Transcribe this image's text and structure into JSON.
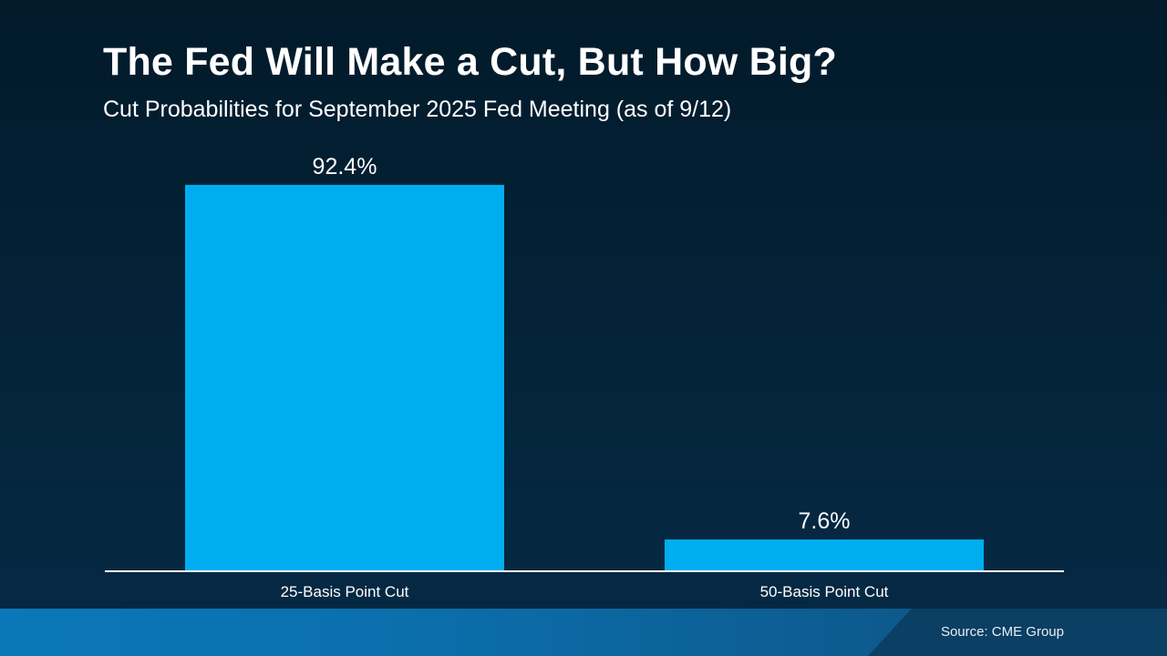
{
  "chart_data": {
    "type": "bar",
    "title": "The Fed Will Make a Cut, But How Big?",
    "subtitle": "Cut Probabilities for September 2025 Fed Meeting (as of 9/12)",
    "categories": [
      "25-Basis Point Cut",
      "50-Basis Point Cut"
    ],
    "values": [
      92.4,
      7.6
    ],
    "value_labels": [
      "92.4%",
      "7.6%"
    ],
    "xlabel": "",
    "ylabel": "",
    "ylim": [
      0,
      100
    ],
    "grid": false,
    "legend": "none",
    "colors": {
      "bar": "#00aeef",
      "axis": "#ffffff",
      "text": "#ffffff"
    }
  },
  "footer": {
    "source": "Source: CME Group"
  }
}
